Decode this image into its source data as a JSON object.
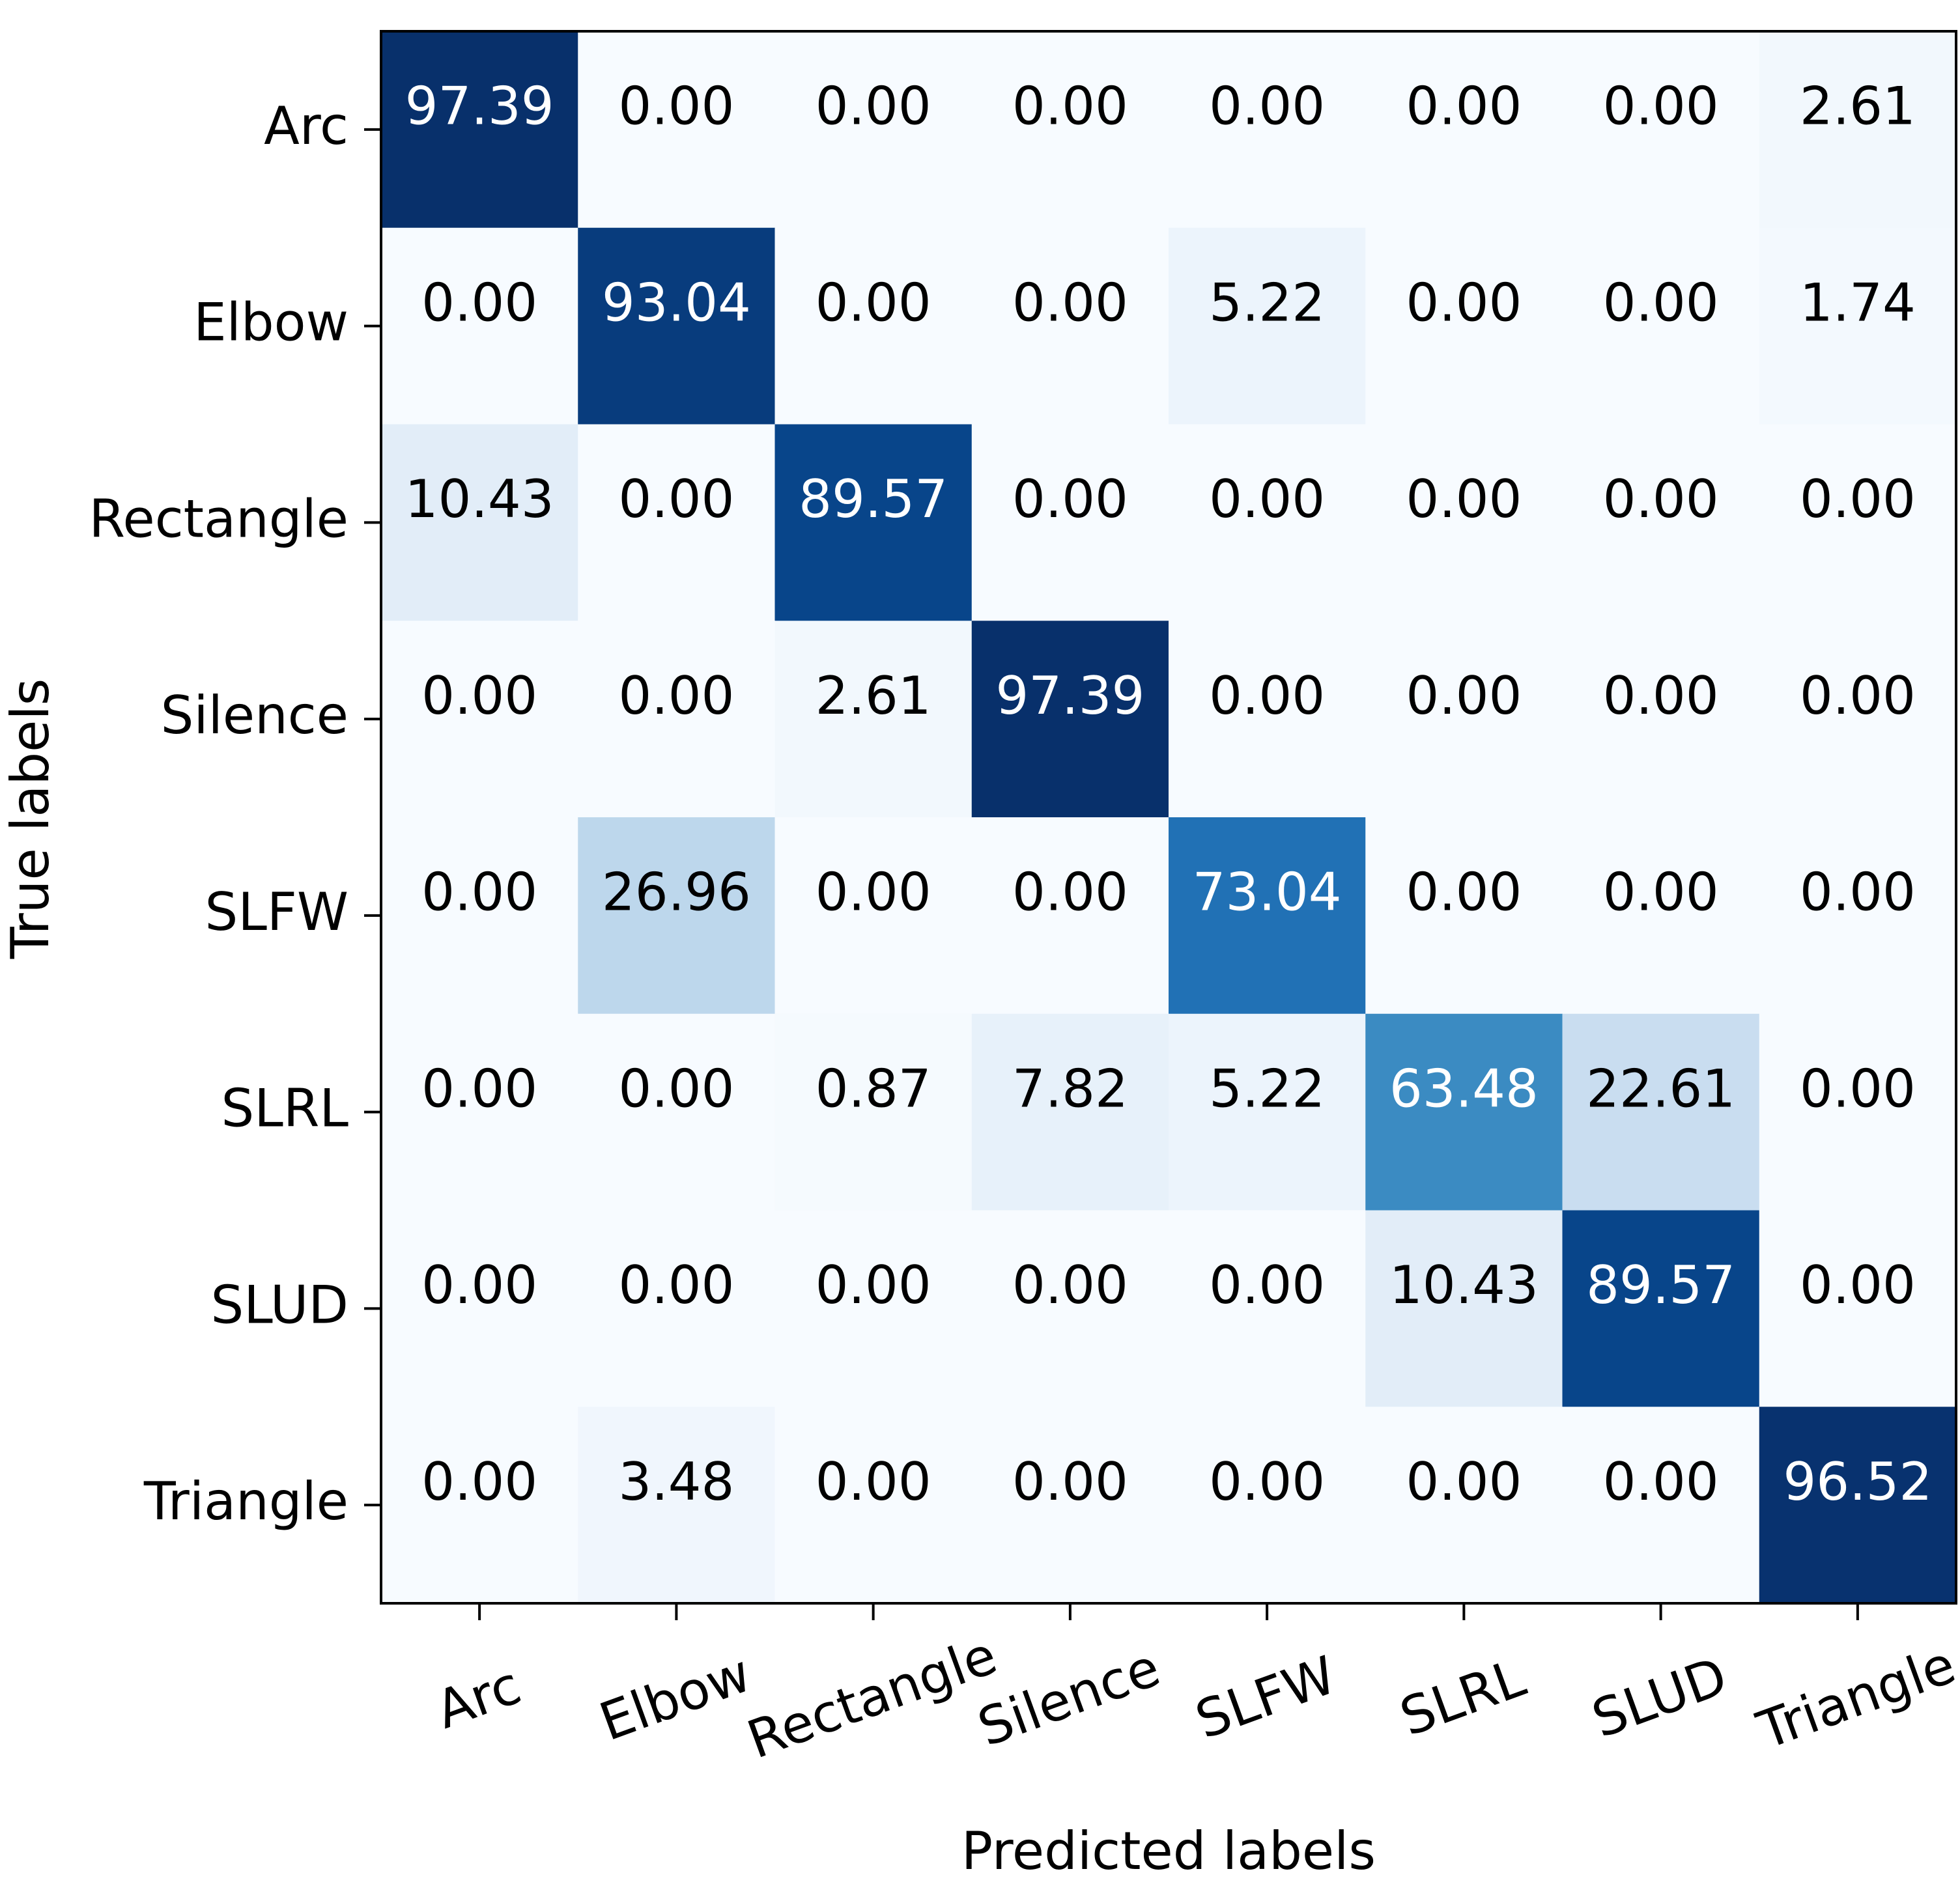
{
  "chart_data": {
    "type": "heatmap",
    "x_label": "Predicted labels",
    "y_label": "True labels",
    "x_categories": [
      "Arc",
      "Elbow",
      "Rectangle",
      "Silence",
      "SLFW",
      "SLRL",
      "SLUD",
      "Triangle"
    ],
    "y_categories": [
      "Arc",
      "Elbow",
      "Rectangle",
      "Silence",
      "SLFW",
      "SLRL",
      "SLUD",
      "Triangle"
    ],
    "values": [
      [
        97.39,
        0,
        0,
        0,
        0,
        0,
        0,
        2.61
      ],
      [
        0,
        93.04,
        0,
        0,
        5.22,
        0,
        0,
        1.74
      ],
      [
        10.43,
        0,
        89.57,
        0,
        0,
        0,
        0,
        0
      ],
      [
        0,
        0,
        2.61,
        97.39,
        0,
        0,
        0,
        0
      ],
      [
        0,
        26.96,
        0,
        0,
        73.04,
        0,
        0,
        0
      ],
      [
        0,
        0,
        0.87,
        7.82,
        5.22,
        63.48,
        22.61,
        0
      ],
      [
        0,
        0,
        0,
        0,
        0,
        10.43,
        89.57,
        0
      ],
      [
        0,
        3.48,
        0,
        0,
        0,
        0,
        0,
        96.52
      ]
    ],
    "value_labels": [
      [
        "97.39",
        "0.00",
        "0.00",
        "0.00",
        "0.00",
        "0.00",
        "0.00",
        "2.61"
      ],
      [
        "0.00",
        "93.04",
        "0.00",
        "0.00",
        "5.22",
        "0.00",
        "0.00",
        "1.74"
      ],
      [
        "10.43",
        "0.00",
        "89.57",
        "0.00",
        "0.00",
        "0.00",
        "0.00",
        "0.00"
      ],
      [
        "0.00",
        "0.00",
        "2.61",
        "97.39",
        "0.00",
        "0.00",
        "0.00",
        "0.00"
      ],
      [
        "0.00",
        "26.96",
        "0.00",
        "0.00",
        "73.04",
        "0.00",
        "0.00",
        "0.00"
      ],
      [
        "0.00",
        "0.00",
        "0.87",
        "7.82",
        "5.22",
        "63.48",
        "22.61",
        "0.00"
      ],
      [
        "0.00",
        "0.00",
        "0.00",
        "0.00",
        "0.00",
        "10.43",
        "89.57",
        "0.00"
      ],
      [
        "0.00",
        "3.48",
        "0.00",
        "0.00",
        "0.00",
        "0.00",
        "0.00",
        "96.52"
      ]
    ],
    "colormap": [
      "#f7fbff",
      "#deebf7",
      "#c6dbef",
      "#9ecae1",
      "#6baed6",
      "#4292c6",
      "#2171b5",
      "#08519c",
      "#08306b"
    ]
  }
}
